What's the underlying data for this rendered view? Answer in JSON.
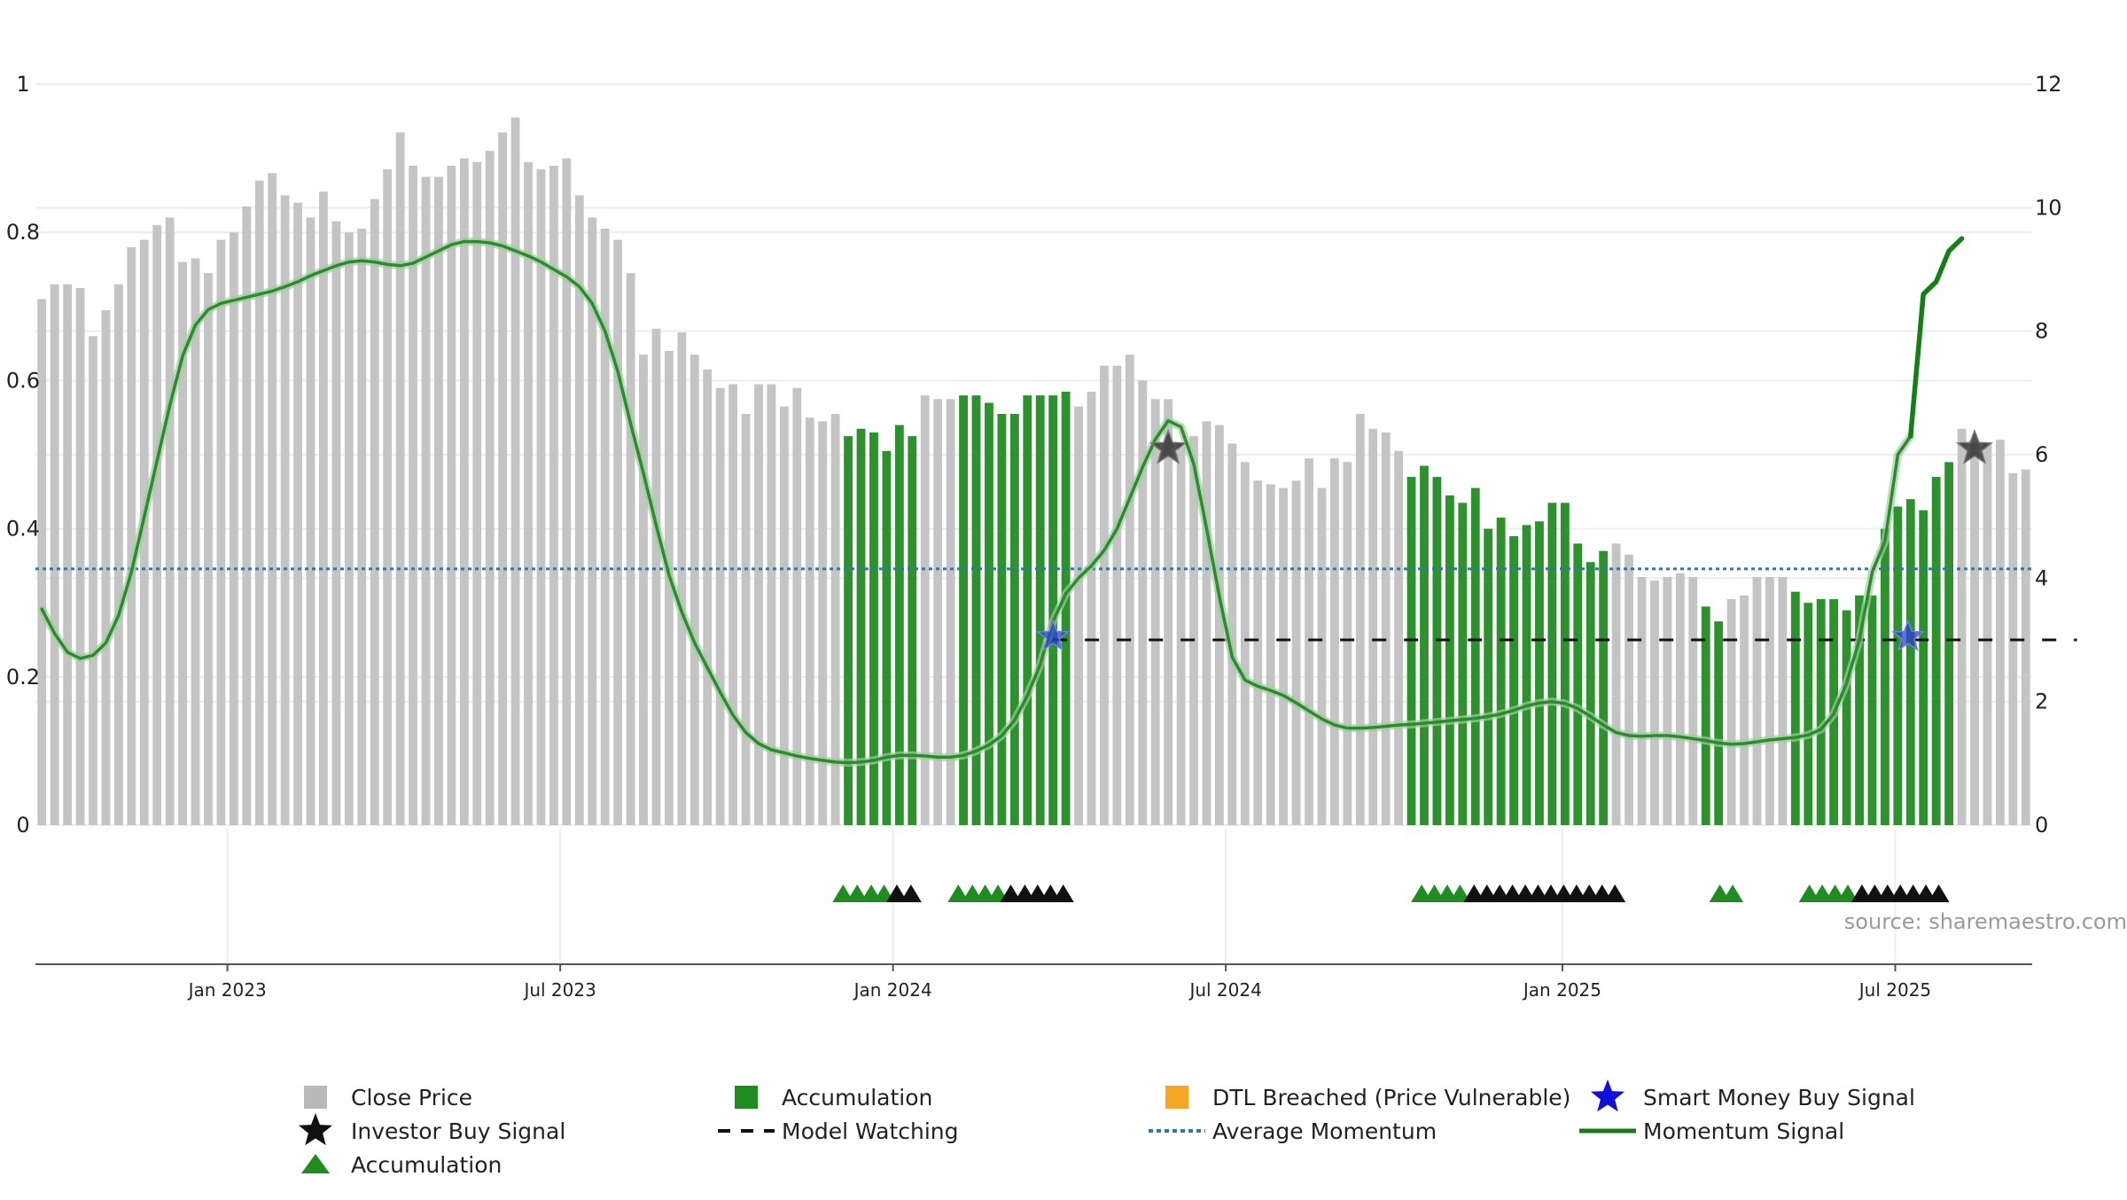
{
  "source_note": "source: sharemaestro.com",
  "chart_data": {
    "type": "bar",
    "left_axis": {
      "ticks": [
        0,
        0.2,
        0.4,
        0.6,
        0.8,
        1
      ],
      "tick_labels": [
        "0",
        "0.2",
        "0.4",
        "0.6",
        "0.8",
        "1"
      ],
      "range": [
        0,
        1
      ]
    },
    "right_axis": {
      "ticks": [
        0,
        2,
        4,
        6,
        8,
        10,
        12
      ],
      "tick_labels": [
        "0",
        "2",
        "4",
        "6",
        "8",
        "10",
        "12"
      ],
      "range": [
        0,
        12
      ]
    },
    "x_axis": {
      "ticks": [
        {
          "label": "Jan 2023",
          "index": 14.5
        },
        {
          "label": "Jul 2023",
          "index": 40.5
        },
        {
          "label": "Jan 2024",
          "index": 66.5
        },
        {
          "label": "Jul 2024",
          "index": 92.5
        },
        {
          "label": "Jan 2025",
          "index": 118.8
        },
        {
          "label": "Jul 2025",
          "index": 144.8
        }
      ]
    },
    "close_price": [
      0.71,
      0.73,
      0.73,
      0.725,
      0.66,
      0.695,
      0.73,
      0.78,
      0.79,
      0.81,
      0.82,
      0.76,
      0.765,
      0.745,
      0.79,
      0.8,
      0.835,
      0.87,
      0.88,
      0.85,
      0.84,
      0.82,
      0.855,
      0.815,
      0.8,
      0.805,
      0.845,
      0.885,
      0.935,
      0.89,
      0.875,
      0.875,
      0.89,
      0.9,
      0.895,
      0.91,
      0.935,
      0.955,
      0.895,
      0.885,
      0.89,
      0.9,
      0.85,
      0.82,
      0.805,
      0.79,
      0.745,
      0.635,
      0.67,
      0.64,
      0.665,
      0.635,
      0.615,
      0.59,
      0.595,
      0.555,
      0.595,
      0.595,
      0.565,
      0.59,
      0.55,
      0.545,
      0.555,
      0.525,
      0.535,
      0.53,
      0.505,
      0.54,
      0.525,
      0.58,
      0.575,
      0.575,
      0.58,
      0.58,
      0.57,
      0.555,
      0.555,
      0.58,
      0.58,
      0.58,
      0.585,
      0.565,
      0.585,
      0.62,
      0.62,
      0.635,
      0.6,
      0.575,
      0.575,
      0.515,
      0.525,
      0.545,
      0.54,
      0.515,
      0.49,
      0.465,
      0.46,
      0.455,
      0.465,
      0.495,
      0.455,
      0.495,
      0.49,
      0.555,
      0.535,
      0.53,
      0.505,
      0.47,
      0.485,
      0.47,
      0.445,
      0.435,
      0.455,
      0.4,
      0.415,
      0.39,
      0.405,
      0.41,
      0.435,
      0.435,
      0.38,
      0.355,
      0.37,
      0.38,
      0.365,
      0.335,
      0.33,
      0.335,
      0.34,
      0.335,
      0.295,
      0.275,
      0.305,
      0.31,
      0.335,
      0.335,
      0.335,
      0.315,
      0.3,
      0.305,
      0.305,
      0.29,
      0.31,
      0.31,
      0.4,
      0.43,
      0.44,
      0.425,
      0.47,
      0.49,
      0.535,
      0.515,
      0.515,
      0.52,
      0.475,
      0.48
    ],
    "accumulation_bar_indices": [
      [
        63,
        68
      ],
      [
        72,
        80
      ],
      [
        107,
        122
      ],
      [
        130,
        131
      ],
      [
        137,
        149
      ]
    ],
    "momentum_signal": [
      3.5,
      3.1,
      2.8,
      2.7,
      2.75,
      2.95,
      3.4,
      4.1,
      5.0,
      5.9,
      6.8,
      7.6,
      8.1,
      8.35,
      8.45,
      8.5,
      8.55,
      8.6,
      8.65,
      8.72,
      8.8,
      8.9,
      8.98,
      9.06,
      9.12,
      9.14,
      9.12,
      9.08,
      9.06,
      9.1,
      9.2,
      9.3,
      9.4,
      9.45,
      9.45,
      9.43,
      9.38,
      9.3,
      9.22,
      9.12,
      9.0,
      8.88,
      8.72,
      8.45,
      8.0,
      7.35,
      6.5,
      5.7,
      4.85,
      4.05,
      3.45,
      2.95,
      2.55,
      2.15,
      1.78,
      1.5,
      1.32,
      1.22,
      1.17,
      1.12,
      1.08,
      1.05,
      1.02,
      1.01,
      1.02,
      1.05,
      1.1,
      1.13,
      1.13,
      1.12,
      1.1,
      1.1,
      1.13,
      1.2,
      1.3,
      1.45,
      1.7,
      2.1,
      2.6,
      3.3,
      3.75,
      4.0,
      4.2,
      4.45,
      4.8,
      5.3,
      5.8,
      6.25,
      6.55,
      6.45,
      5.85,
      4.8,
      3.7,
      2.72,
      2.35,
      2.25,
      2.18,
      2.1,
      1.98,
      1.85,
      1.72,
      1.62,
      1.57,
      1.57,
      1.58,
      1.6,
      1.62,
      1.63,
      1.65,
      1.67,
      1.69,
      1.71,
      1.73,
      1.76,
      1.8,
      1.86,
      1.93,
      1.98,
      2.0,
      1.97,
      1.89,
      1.76,
      1.62,
      1.5,
      1.45,
      1.44,
      1.45,
      1.45,
      1.43,
      1.4,
      1.37,
      1.33,
      1.31,
      1.32,
      1.35,
      1.38,
      1.4,
      1.42,
      1.46,
      1.55,
      1.8,
      2.3,
      3.0,
      4.1,
      4.6,
      6.0,
      6.3,
      8.6,
      8.8,
      9.3,
      9.5
    ],
    "momentum_signal_emphasized_from_index": 146,
    "average_momentum": 4.15,
    "model_watching": [
      {
        "from": 79,
        "to": 159,
        "value": 3.0
      }
    ],
    "investor_buy_signals": [
      {
        "index": 88.0,
        "value": 6.1
      },
      {
        "index": 151.0,
        "value": 6.1
      }
    ],
    "smart_money_buy_signals": [
      {
        "index": 79.0,
        "value": 3.05
      },
      {
        "index": 145.8,
        "value": 3.05
      }
    ],
    "accumulation_markers": [
      {
        "index": 62.6,
        "kind": "green"
      },
      {
        "index": 63.7,
        "kind": "green"
      },
      {
        "index": 64.8,
        "kind": "green"
      },
      {
        "index": 65.8,
        "kind": "green"
      },
      {
        "index": 66.8,
        "kind": "black"
      },
      {
        "index": 67.9,
        "kind": "black"
      },
      {
        "index": 71.6,
        "kind": "green"
      },
      {
        "index": 72.7,
        "kind": "green"
      },
      {
        "index": 73.7,
        "kind": "green"
      },
      {
        "index": 74.7,
        "kind": "green"
      },
      {
        "index": 75.7,
        "kind": "black"
      },
      {
        "index": 76.8,
        "kind": "black"
      },
      {
        "index": 77.8,
        "kind": "black"
      },
      {
        "index": 78.8,
        "kind": "black"
      },
      {
        "index": 79.8,
        "kind": "black"
      },
      {
        "index": 107.8,
        "kind": "green"
      },
      {
        "index": 108.8,
        "kind": "green"
      },
      {
        "index": 109.8,
        "kind": "green"
      },
      {
        "index": 110.8,
        "kind": "green"
      },
      {
        "index": 111.9,
        "kind": "black"
      },
      {
        "index": 112.9,
        "kind": "black"
      },
      {
        "index": 113.9,
        "kind": "black"
      },
      {
        "index": 114.9,
        "kind": "black"
      },
      {
        "index": 115.9,
        "kind": "black"
      },
      {
        "index": 116.9,
        "kind": "black"
      },
      {
        "index": 117.9,
        "kind": "black"
      },
      {
        "index": 118.9,
        "kind": "black"
      },
      {
        "index": 119.9,
        "kind": "black"
      },
      {
        "index": 120.9,
        "kind": "black"
      },
      {
        "index": 121.9,
        "kind": "black"
      },
      {
        "index": 122.9,
        "kind": "black"
      },
      {
        "index": 131.1,
        "kind": "green"
      },
      {
        "index": 132.1,
        "kind": "green"
      },
      {
        "index": 138.1,
        "kind": "green"
      },
      {
        "index": 139.1,
        "kind": "green"
      },
      {
        "index": 140.1,
        "kind": "green"
      },
      {
        "index": 141.1,
        "kind": "green"
      },
      {
        "index": 142.2,
        "kind": "black"
      },
      {
        "index": 143.2,
        "kind": "black"
      },
      {
        "index": 144.2,
        "kind": "black"
      },
      {
        "index": 145.2,
        "kind": "black"
      },
      {
        "index": 146.2,
        "kind": "black"
      },
      {
        "index": 147.2,
        "kind": "black"
      },
      {
        "index": 148.2,
        "kind": "black"
      }
    ],
    "legend": {
      "placement": "bottom",
      "entries": [
        {
          "key": "close_price",
          "label": "Close Price",
          "symbol": "square",
          "color": "#b8b8b8"
        },
        {
          "key": "accumulation_bar",
          "label": "Accumulation",
          "symbol": "square",
          "color": "#1e8c1e"
        },
        {
          "key": "dtl_breached",
          "label": "DTL Breached (Price Vulnerable)",
          "symbol": "square",
          "color": "#f5a623"
        },
        {
          "key": "smart_money",
          "label": "Smart Money Buy Signal",
          "symbol": "star",
          "color": "#1010dd"
        },
        {
          "key": "investor_buy",
          "label": "Investor Buy Signal",
          "symbol": "star",
          "color": "#111111"
        },
        {
          "key": "model_watching",
          "label": "Model Watching",
          "symbol": "dash",
          "color": "#111111"
        },
        {
          "key": "average_momentum",
          "label": "Average Momentum",
          "symbol": "dotted",
          "color": "#2a7aa8"
        },
        {
          "key": "momentum_signal",
          "label": "Momentum Signal",
          "symbol": "line",
          "color": "#1a7a1a"
        },
        {
          "key": "accumulation_marker",
          "label": "Accumulation",
          "symbol": "triangle",
          "color": "#1e8c1e"
        }
      ]
    },
    "colors": {
      "close_bar": "#c4c4c4",
      "accumulation_bar": "#2d912d",
      "momentum_line": "#2e8a2e",
      "momentum_emphasized": "#138013",
      "average_momentum": "#2a7aa8",
      "model_watching": "#111111",
      "grid": "#ececf2"
    },
    "grid": true
  }
}
